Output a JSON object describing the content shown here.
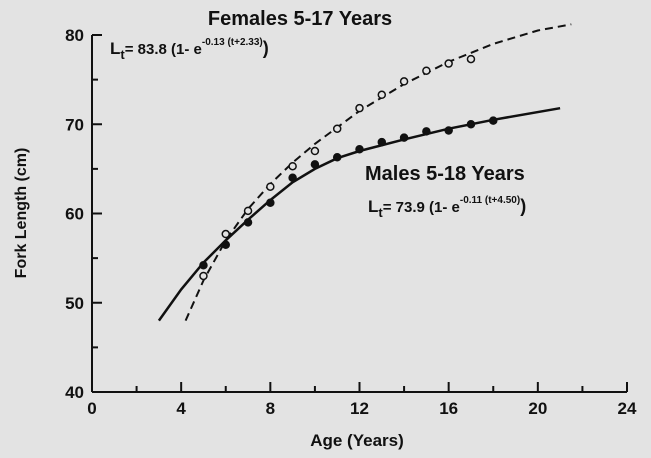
{
  "chart_data": {
    "type": "line",
    "xlabel": "Age (Years)",
    "ylabel": "Fork Length (cm)",
    "xlim": [
      0,
      24
    ],
    "xticks": [
      0,
      4,
      8,
      12,
      16,
      20,
      24
    ],
    "xminorticks": [
      2,
      6,
      10,
      14,
      18,
      22
    ],
    "ylim": [
      40,
      80
    ],
    "yticks": [
      40,
      50,
      60,
      70,
      80
    ],
    "yminorticks": [
      45,
      55,
      65,
      75
    ],
    "color": "#111111",
    "annotations": [
      {
        "title": "Females 5-17 Years",
        "equation": {
          "base": "L",
          "sub": "t",
          "coef": "= 83.8 (1- e",
          "exponent": "-0.13 (t+2.33)",
          "close": ")"
        }
      },
      {
        "title": "Males 5-18 Years",
        "equation": {
          "base": "L",
          "sub": "t",
          "coef": "= 73.9 (1- e",
          "exponent": "-0.11 (t+4.50)",
          "close": ")"
        }
      }
    ],
    "series": [
      {
        "style": "dashed",
        "x": [
          4.2,
          5,
          6,
          7,
          8,
          9,
          10,
          12,
          14,
          16,
          18,
          20,
          21.5
        ],
        "values": [
          48,
          52.5,
          57,
          60.5,
          63.3,
          65.7,
          67.8,
          71.5,
          74.5,
          77,
          79,
          80.5,
          81.2
        ]
      },
      {
        "style": "solid",
        "x": [
          3,
          4,
          5,
          6,
          7,
          8,
          9,
          10,
          11,
          12,
          14,
          16,
          18,
          21
        ],
        "values": [
          48,
          51.5,
          54.5,
          57,
          59.3,
          61.5,
          63.5,
          65,
          66.2,
          67,
          68.3,
          69.5,
          70.5,
          71.8
        ]
      },
      {
        "style": "open-points",
        "x": [
          5,
          6,
          7,
          8,
          9,
          10,
          11,
          12,
          13,
          14,
          15,
          16,
          17
        ],
        "values": [
          53,
          57.7,
          60.3,
          63,
          65.3,
          67,
          69.5,
          71.8,
          73.3,
          74.8,
          76,
          76.8,
          77.3
        ]
      },
      {
        "style": "filled-points",
        "x": [
          5,
          6,
          7,
          8,
          9,
          10,
          11,
          12,
          13,
          14,
          15,
          16,
          17,
          18
        ],
        "values": [
          54.2,
          56.5,
          59,
          61.2,
          64,
          65.5,
          66.3,
          67.2,
          68,
          68.5,
          69.2,
          69.3,
          70,
          70.4
        ]
      }
    ]
  }
}
